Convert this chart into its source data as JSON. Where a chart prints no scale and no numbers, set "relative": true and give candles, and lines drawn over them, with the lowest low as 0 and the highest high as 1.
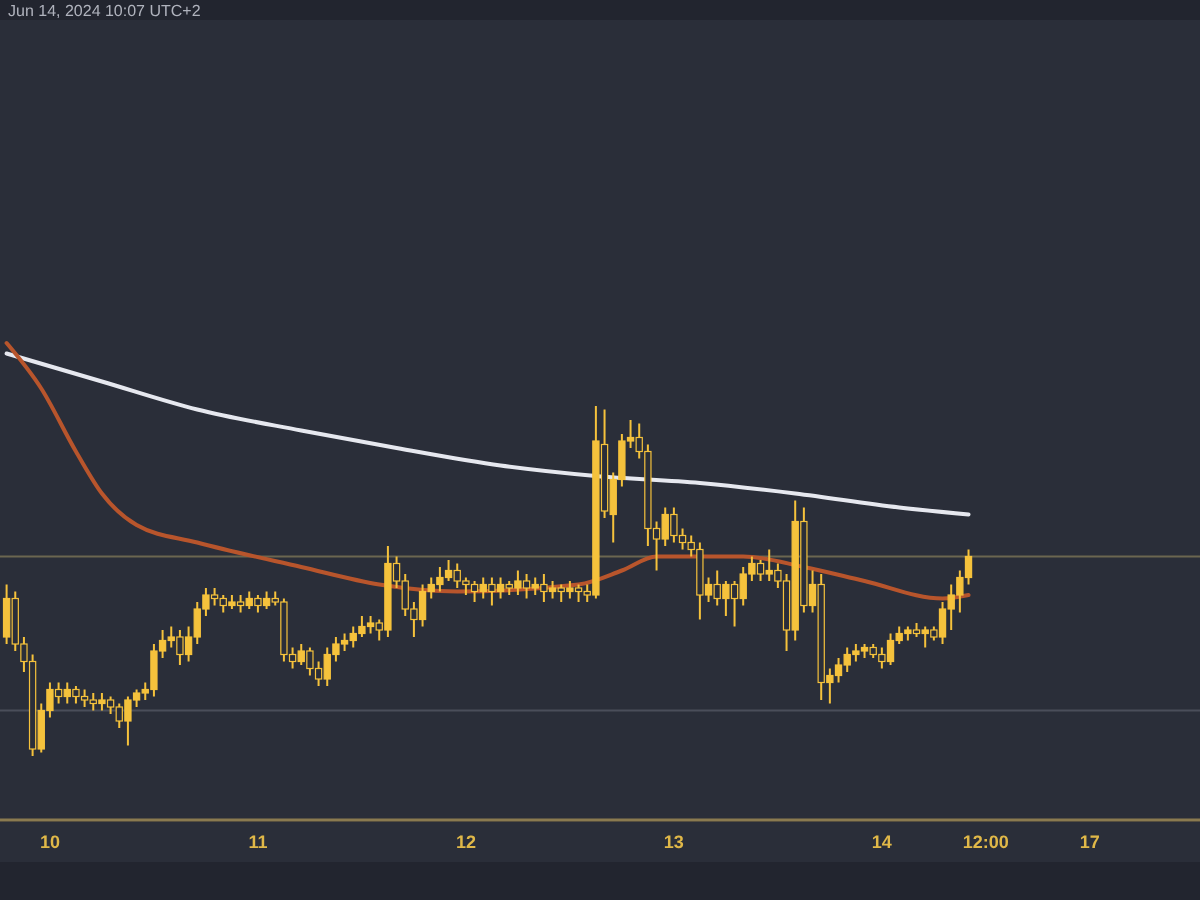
{
  "chart_data": {
    "type": "candlestick",
    "relative": true,
    "color": "#f5c23c",
    "annotations": [
      "Jun 14, 2024 10:07 UTC+2"
    ],
    "tick_labels": "x",
    "categories": [
      null,
      null,
      null,
      null,
      null,
      "10",
      null,
      null,
      null,
      null,
      null,
      null,
      null,
      null,
      null,
      null,
      null,
      null,
      null,
      null,
      null,
      null,
      null,
      null,
      null,
      null,
      null,
      null,
      null,
      "11",
      null,
      null,
      null,
      null,
      null,
      null,
      null,
      null,
      null,
      null,
      null,
      null,
      null,
      null,
      null,
      null,
      null,
      null,
      null,
      null,
      null,
      null,
      null,
      "12",
      null,
      null,
      null,
      null,
      null,
      null,
      null,
      null,
      null,
      null,
      null,
      null,
      null,
      null,
      null,
      null,
      null,
      null,
      null,
      null,
      null,
      null,
      null,
      "13",
      null,
      null,
      null,
      null,
      null,
      null,
      null,
      null,
      null,
      null,
      null,
      null,
      null,
      null,
      null,
      null,
      null,
      null,
      null,
      null,
      null,
      null,
      null,
      "14",
      null,
      null,
      null,
      null,
      null,
      null,
      null,
      null,
      null,
      null,
      null,
      "12:00",
      null,
      null,
      null,
      null,
      null,
      null,
      null,
      null,
      null,
      null,
      null,
      "17",
      null,
      null,
      null,
      null,
      null,
      null,
      null,
      null,
      null,
      null,
      null
    ],
    "ohlc": [
      [
        0.34,
        0.49,
        0.32,
        0.45
      ],
      [
        0.45,
        0.47,
        0.3,
        0.32
      ],
      [
        0.32,
        0.34,
        0.24,
        0.27
      ],
      [
        0.27,
        0.29,
        0,
        0.02
      ],
      [
        0.02,
        0.15,
        0.01,
        0.13
      ],
      [
        0.13,
        0.21,
        0.11,
        0.19
      ],
      [
        0.19,
        0.21,
        0.15,
        0.17
      ],
      [
        0.17,
        0.21,
        0.15,
        0.19
      ],
      [
        0.19,
        0.2,
        0.15,
        0.17
      ],
      [
        0.17,
        0.19,
        0.14,
        0.16
      ],
      [
        0.16,
        0.18,
        0.13,
        0.15
      ],
      [
        0.15,
        0.18,
        0.13,
        0.16
      ],
      [
        0.16,
        0.17,
        0.12,
        0.14
      ],
      [
        0.14,
        0.15,
        0.08,
        0.1
      ],
      [
        0.1,
        0.17,
        0.03,
        0.16
      ],
      [
        0.16,
        0.19,
        0.14,
        0.18
      ],
      [
        0.18,
        0.21,
        0.16,
        0.19
      ],
      [
        0.19,
        0.32,
        0.17,
        0.3
      ],
      [
        0.3,
        0.36,
        0.28,
        0.33
      ],
      [
        0.33,
        0.37,
        0.31,
        0.34
      ],
      [
        0.34,
        0.36,
        0.26,
        0.29
      ],
      [
        0.29,
        0.37,
        0.27,
        0.34
      ],
      [
        0.34,
        0.44,
        0.32,
        0.42
      ],
      [
        0.42,
        0.48,
        0.4,
        0.46
      ],
      [
        0.46,
        0.48,
        0.43,
        0.45
      ],
      [
        0.45,
        0.46,
        0.41,
        0.43
      ],
      [
        0.43,
        0.46,
        0.42,
        0.44
      ],
      [
        0.44,
        0.46,
        0.41,
        0.43
      ],
      [
        0.43,
        0.47,
        0.42,
        0.45
      ],
      [
        0.45,
        0.46,
        0.41,
        0.43
      ],
      [
        0.43,
        0.47,
        0.42,
        0.45
      ],
      [
        0.45,
        0.47,
        0.43,
        0.44
      ],
      [
        0.44,
        0.45,
        0.27,
        0.29
      ],
      [
        0.29,
        0.31,
        0.25,
        0.27
      ],
      [
        0.27,
        0.32,
        0.26,
        0.3
      ],
      [
        0.3,
        0.31,
        0.23,
        0.25
      ],
      [
        0.25,
        0.27,
        0.2,
        0.22
      ],
      [
        0.22,
        0.31,
        0.2,
        0.29
      ],
      [
        0.29,
        0.34,
        0.27,
        0.32
      ],
      [
        0.32,
        0.35,
        0.3,
        0.33
      ],
      [
        0.33,
        0.37,
        0.31,
        0.35
      ],
      [
        0.35,
        0.4,
        0.34,
        0.37
      ],
      [
        0.37,
        0.4,
        0.35,
        0.38
      ],
      [
        0.38,
        0.39,
        0.33,
        0.36
      ],
      [
        0.36,
        0.6,
        0.34,
        0.55
      ],
      [
        0.55,
        0.57,
        0.48,
        0.5
      ],
      [
        0.5,
        0.52,
        0.4,
        0.42
      ],
      [
        0.42,
        0.44,
        0.34,
        0.39
      ],
      [
        0.39,
        0.49,
        0.37,
        0.47
      ],
      [
        0.47,
        0.51,
        0.45,
        0.49
      ],
      [
        0.49,
        0.54,
        0.47,
        0.51
      ],
      [
        0.51,
        0.56,
        0.5,
        0.53
      ],
      [
        0.53,
        0.55,
        0.48,
        0.5
      ],
      [
        0.5,
        0.51,
        0.46,
        0.49
      ],
      [
        0.49,
        0.5,
        0.44,
        0.47
      ],
      [
        0.47,
        0.51,
        0.45,
        0.49
      ],
      [
        0.49,
        0.51,
        0.43,
        0.47
      ],
      [
        0.47,
        0.51,
        0.45,
        0.49
      ],
      [
        0.49,
        0.5,
        0.46,
        0.48
      ],
      [
        0.48,
        0.53,
        0.46,
        0.5
      ],
      [
        0.5,
        0.52,
        0.45,
        0.48
      ],
      [
        0.48,
        0.51,
        0.46,
        0.49
      ],
      [
        0.49,
        0.52,
        0.44,
        0.47
      ],
      [
        0.47,
        0.5,
        0.45,
        0.48
      ],
      [
        0.48,
        0.49,
        0.44,
        0.47
      ],
      [
        0.47,
        0.5,
        0.45,
        0.48
      ],
      [
        0.48,
        0.49,
        0.44,
        0.47
      ],
      [
        0.47,
        0.49,
        0.44,
        0.46
      ],
      [
        0.46,
        1.0,
        0.45,
        0.9
      ],
      [
        0.89,
        0.99,
        0.68,
        0.7
      ],
      [
        0.69,
        0.81,
        0.61,
        0.79
      ],
      [
        0.79,
        0.92,
        0.77,
        0.9
      ],
      [
        0.9,
        0.96,
        0.88,
        0.91
      ],
      [
        0.91,
        0.95,
        0.85,
        0.87
      ],
      [
        0.87,
        0.89,
        0.6,
        0.65
      ],
      [
        0.65,
        0.67,
        0.53,
        0.62
      ],
      [
        0.62,
        0.71,
        0.6,
        0.69
      ],
      [
        0.69,
        0.71,
        0.61,
        0.63
      ],
      [
        0.63,
        0.65,
        0.59,
        0.61
      ],
      [
        0.61,
        0.63,
        0.57,
        0.59
      ],
      [
        0.59,
        0.61,
        0.39,
        0.46
      ],
      [
        0.46,
        0.51,
        0.44,
        0.49
      ],
      [
        0.49,
        0.53,
        0.43,
        0.45
      ],
      [
        0.45,
        0.5,
        0.4,
        0.49
      ],
      [
        0.49,
        0.5,
        0.37,
        0.45
      ],
      [
        0.45,
        0.54,
        0.43,
        0.52
      ],
      [
        0.52,
        0.57,
        0.5,
        0.55
      ],
      [
        0.55,
        0.56,
        0.5,
        0.52
      ],
      [
        0.52,
        0.59,
        0.5,
        0.53
      ],
      [
        0.53,
        0.55,
        0.48,
        0.5
      ],
      [
        0.5,
        0.52,
        0.3,
        0.36
      ],
      [
        0.36,
        0.73,
        0.33,
        0.67
      ],
      [
        0.67,
        0.71,
        0.41,
        0.43
      ],
      [
        0.43,
        0.53,
        0.41,
        0.49
      ],
      [
        0.49,
        0.52,
        0.16,
        0.21
      ],
      [
        0.21,
        0.25,
        0.15,
        0.23
      ],
      [
        0.23,
        0.28,
        0.21,
        0.26
      ],
      [
        0.26,
        0.31,
        0.24,
        0.29
      ],
      [
        0.29,
        0.32,
        0.27,
        0.3
      ],
      [
        0.3,
        0.32,
        0.28,
        0.31
      ],
      [
        0.31,
        0.32,
        0.28,
        0.29
      ],
      [
        0.29,
        0.31,
        0.25,
        0.27
      ],
      [
        0.27,
        0.35,
        0.26,
        0.33
      ],
      [
        0.33,
        0.37,
        0.32,
        0.35
      ],
      [
        0.35,
        0.37,
        0.33,
        0.36
      ],
      [
        0.36,
        0.38,
        0.34,
        0.35
      ],
      [
        0.35,
        0.37,
        0.31,
        0.36
      ],
      [
        0.36,
        0.37,
        0.33,
        0.34
      ],
      [
        0.34,
        0.44,
        0.32,
        0.42
      ],
      [
        0.42,
        0.49,
        0.36,
        0.46
      ],
      [
        0.46,
        0.53,
        0.41,
        0.51
      ],
      [
        0.51,
        0.59,
        0.49,
        0.57
      ],
      null,
      null,
      null,
      null,
      null,
      null,
      null,
      null,
      null,
      null,
      null,
      null,
      null,
      null,
      null,
      null,
      null,
      null,
      null,
      null,
      null,
      null,
      null,
      null,
      null
    ],
    "series": [
      {
        "type": "line",
        "color": "#e6e8ef",
        "values": [
          1.15,
          null,
          null,
          null,
          null,
          null,
          null,
          null,
          null,
          null,
          null,
          1.07,
          null,
          null,
          null,
          null,
          null,
          null,
          null,
          null,
          null,
          null,
          0.99,
          null,
          null,
          null,
          null,
          null,
          null,
          null,
          null,
          null,
          null,
          null,
          0.93,
          null,
          null,
          null,
          null,
          null,
          null,
          null,
          null,
          null,
          null,
          0.88,
          null,
          null,
          null,
          null,
          null,
          null,
          null,
          null,
          null,
          null,
          null,
          0.83,
          null,
          null,
          null,
          null,
          null,
          null,
          null,
          null,
          null,
          null,
          0.8,
          null,
          null,
          null,
          null,
          null,
          null,
          null,
          null,
          null,
          null,
          null,
          0.78,
          null,
          null,
          null,
          null,
          null,
          null,
          null,
          null,
          null,
          null,
          0.75,
          null,
          null,
          null,
          null,
          null,
          null,
          null,
          null,
          null,
          null,
          null,
          0.71,
          null,
          null,
          null,
          null,
          null,
          null,
          null,
          0.69,
          null,
          null,
          null,
          null,
          null,
          null,
          null,
          null,
          null,
          null,
          null,
          null,
          null,
          null,
          null,
          null,
          null,
          null,
          null,
          null,
          null,
          null,
          null,
          null,
          null
        ]
      },
      {
        "type": "line",
        "color": "#b8552c",
        "values": [
          1.18,
          null,
          null,
          null,
          1.05,
          null,
          null,
          null,
          0.87,
          null,
          null,
          0.75,
          null,
          null,
          null,
          0.66,
          null,
          null,
          null,
          null,
          null,
          null,
          0.61,
          null,
          null,
          null,
          null,
          null,
          null,
          null,
          null,
          null,
          null,
          null,
          0.54,
          null,
          null,
          null,
          null,
          null,
          null,
          null,
          null,
          0.49,
          null,
          null,
          null,
          null,
          null,
          null,
          null,
          null,
          0.47,
          null,
          null,
          null,
          null,
          null,
          null,
          null,
          null,
          null,
          null,
          null,
          null,
          null,
          0.49,
          null,
          null,
          null,
          null,
          0.53,
          null,
          null,
          null,
          0.57,
          null,
          null,
          null,
          null,
          null,
          null,
          null,
          null,
          null,
          0.57,
          null,
          null,
          null,
          null,
          null,
          null,
          0.54,
          null,
          null,
          null,
          null,
          null,
          null,
          0.5,
          null,
          null,
          null,
          null,
          null,
          null,
          null,
          null,
          0.45,
          null,
          null,
          0.46,
          null,
          null,
          null,
          null,
          null,
          null,
          null,
          null,
          null,
          null,
          null,
          null,
          null,
          null,
          null,
          null,
          null,
          null,
          null,
          null,
          null,
          null,
          null,
          null,
          null
        ]
      }
    ],
    "ref_lines": [
      {
        "axis": "y",
        "value": 0.57,
        "color": "#6b6650"
      },
      {
        "axis": "y",
        "value": 0.13,
        "color": "#4a4e5a"
      }
    ]
  }
}
